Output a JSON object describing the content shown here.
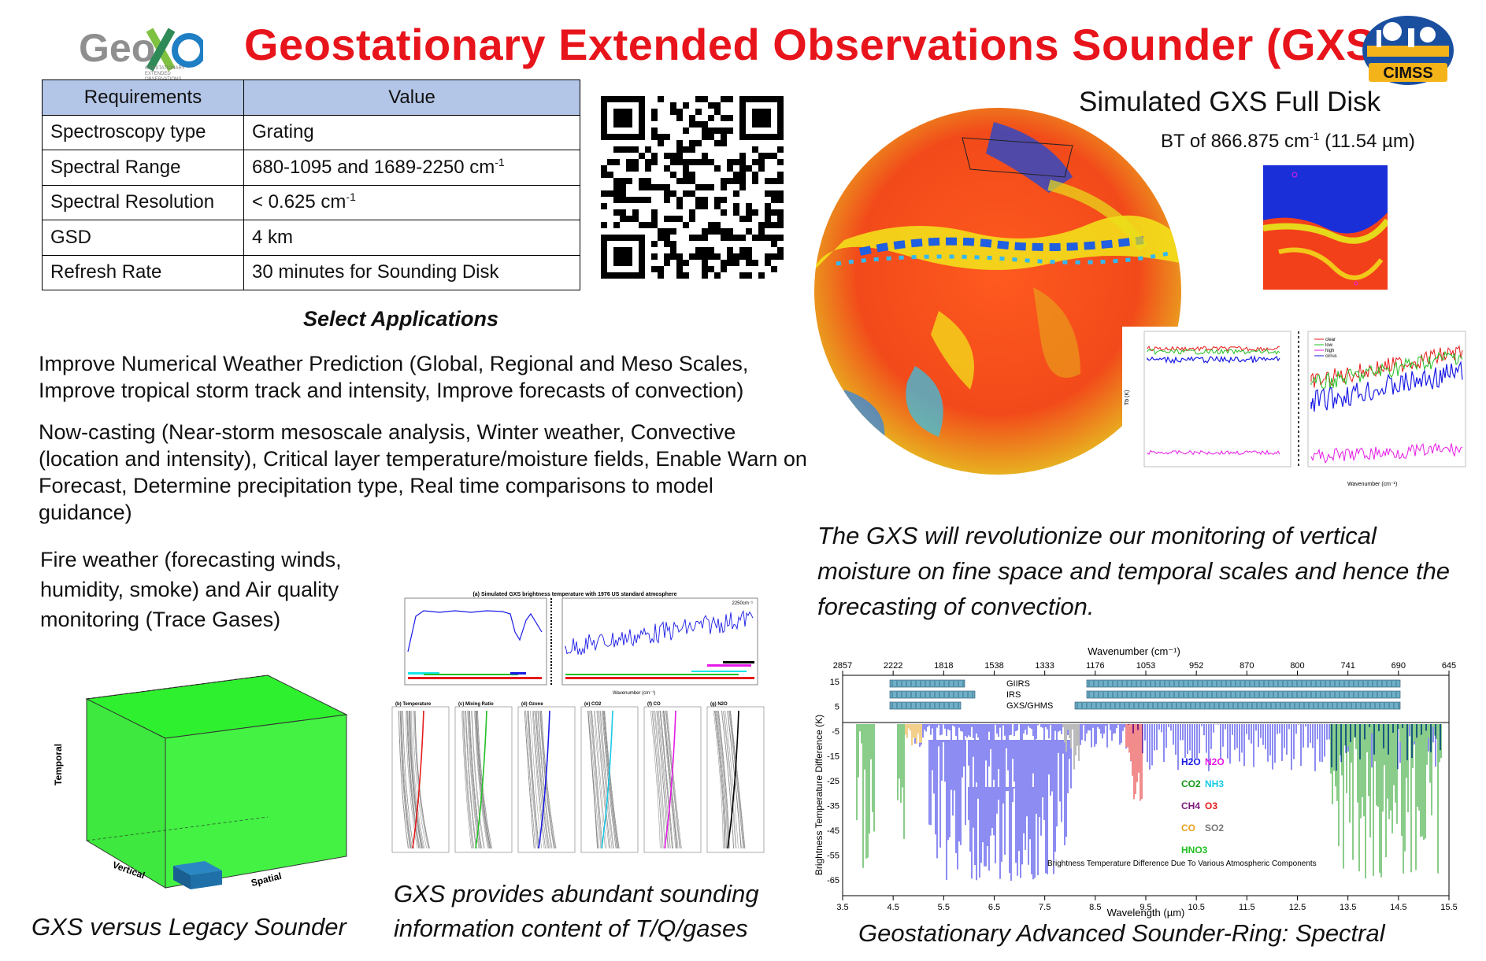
{
  "header": {
    "title": "Geostationary Extended Observations Sounder (GXS)",
    "logo_left": {
      "wordmark": "GeoXO",
      "tagline": "GEOSTATIONARY EXTENDED OBSERVATIONS",
      "icon": "geoxo-logo"
    },
    "logo_right": {
      "wordmark": "CIMSS",
      "icon": "cimss-logo"
    }
  },
  "requirements_table": {
    "headers": [
      "Requirements",
      "Value"
    ],
    "rows": [
      {
        "req": "Spectroscopy type",
        "value": "Grating",
        "sup": ""
      },
      {
        "req": "Spectral Range",
        "value": "680-1095 and 1689-2250 cm",
        "sup": "-1"
      },
      {
        "req": "Spectral Resolution",
        "value": "< 0.625 cm",
        "sup": "-1"
      },
      {
        "req": "GSD",
        "value": "4 km",
        "sup": ""
      },
      {
        "req": "Refresh Rate",
        "value": "30 minutes for Sounding Disk",
        "sup": ""
      }
    ]
  },
  "qr_code": {
    "icon": "qr-code"
  },
  "applications": {
    "heading": "Select Applications",
    "items": [
      "Improve Numerical Weather Prediction (Global, Regional and Meso Scales, Improve tropical storm track and intensity, Improve forecasts of convection)",
      "Now-casting (Near-storm mesoscale analysis, Winter weather, Convective (location and intensity), Critical layer temperature/moisture fields, Enable Warn on Forecast, Determine precipitation type, Real time comparisons to model guidance)",
      "Fire weather (forecasting winds, humidity, smoke) and Air quality monitoring (Trace Gases)"
    ]
  },
  "cube_figure": {
    "axis_temporal": "Temporal",
    "axis_vertical": "Vertical",
    "axis_spatial": "Spatial",
    "caption": "GXS versus Legacy Sounder",
    "colors": {
      "gxs": "#33ee33",
      "legacy": "#1f6fa8"
    }
  },
  "middle_figure": {
    "panel_title": "(a) Simulated GXS brightness temperature with 1976 US standard atmosphere",
    "wavenumber_note": "2250cm⁻¹",
    "xlabel": "Wavenumber (cm⁻¹)",
    "profile_panels": [
      "(b) Temperature",
      "(c) Mixing Ratio",
      "(d) Ozone",
      "(e) CO2",
      "(f) CO",
      "(g) N2O"
    ],
    "caption": "GXS provides abundant sounding information content of T/Q/gases"
  },
  "full_disk": {
    "title": "Simulated GXS Full Disk",
    "subtitle_pre": "BT of 866.875 cm",
    "subtitle_sup": "-1",
    "subtitle_post": " (11.54 µm)",
    "spectra_legend": [
      "clear",
      "low",
      "high",
      "cirrus"
    ],
    "spectra_xlabel": "Wavenumber (cm⁻¹)",
    "spectra_ylabel": "Tb (K)"
  },
  "quote": "The GXS will revolutionize our monitoring of vertical moisture on fine space and temporal scales and hence the forecasting of convection.",
  "ring_chart": {
    "top_axis_label": "Wavenumber (cm⁻¹)",
    "top_ticks": [
      "2857",
      "2222",
      "1818",
      "1538",
      "1333",
      "1176",
      "1053",
      "952",
      "870",
      "800",
      "741",
      "690",
      "645"
    ],
    "bottom_ticks": [
      "3.5",
      "4.5",
      "5.5",
      "6.5",
      "7.5",
      "8.5",
      "9.5",
      "10.5",
      "11.5",
      "12.5",
      "13.5",
      "14.5",
      "15.5"
    ],
    "xlabel": "Wavelength (µm)",
    "ylabel": "Brightness Temperature Difference (K)",
    "y_ticks": [
      "15",
      "5",
      "-5",
      "-15",
      "-25",
      "-35",
      "-45",
      "-55",
      "-65"
    ],
    "instruments": [
      "GIIRS",
      "IRS",
      "GXS/GHMS"
    ],
    "species": [
      {
        "label": "H2O",
        "color": "#1a1ae6"
      },
      {
        "label": "N2O",
        "color": "#e61ae6"
      },
      {
        "label": "CO2",
        "color": "#159a15"
      },
      {
        "label": "NH3",
        "color": "#19c9e6"
      },
      {
        "label": "CH4",
        "color": "#7a1a7a"
      },
      {
        "label": "O3",
        "color": "#e61a1a"
      },
      {
        "label": "CO",
        "color": "#e6a01a"
      },
      {
        "label": "SO2",
        "color": "#777777"
      },
      {
        "label": "HNO3",
        "color": "#22c022"
      }
    ],
    "note": "Brightness Temperature Difference Due To Various Atmospheric Components",
    "caption": "Geostationary Advanced Sounder-Ring: Spectral"
  }
}
